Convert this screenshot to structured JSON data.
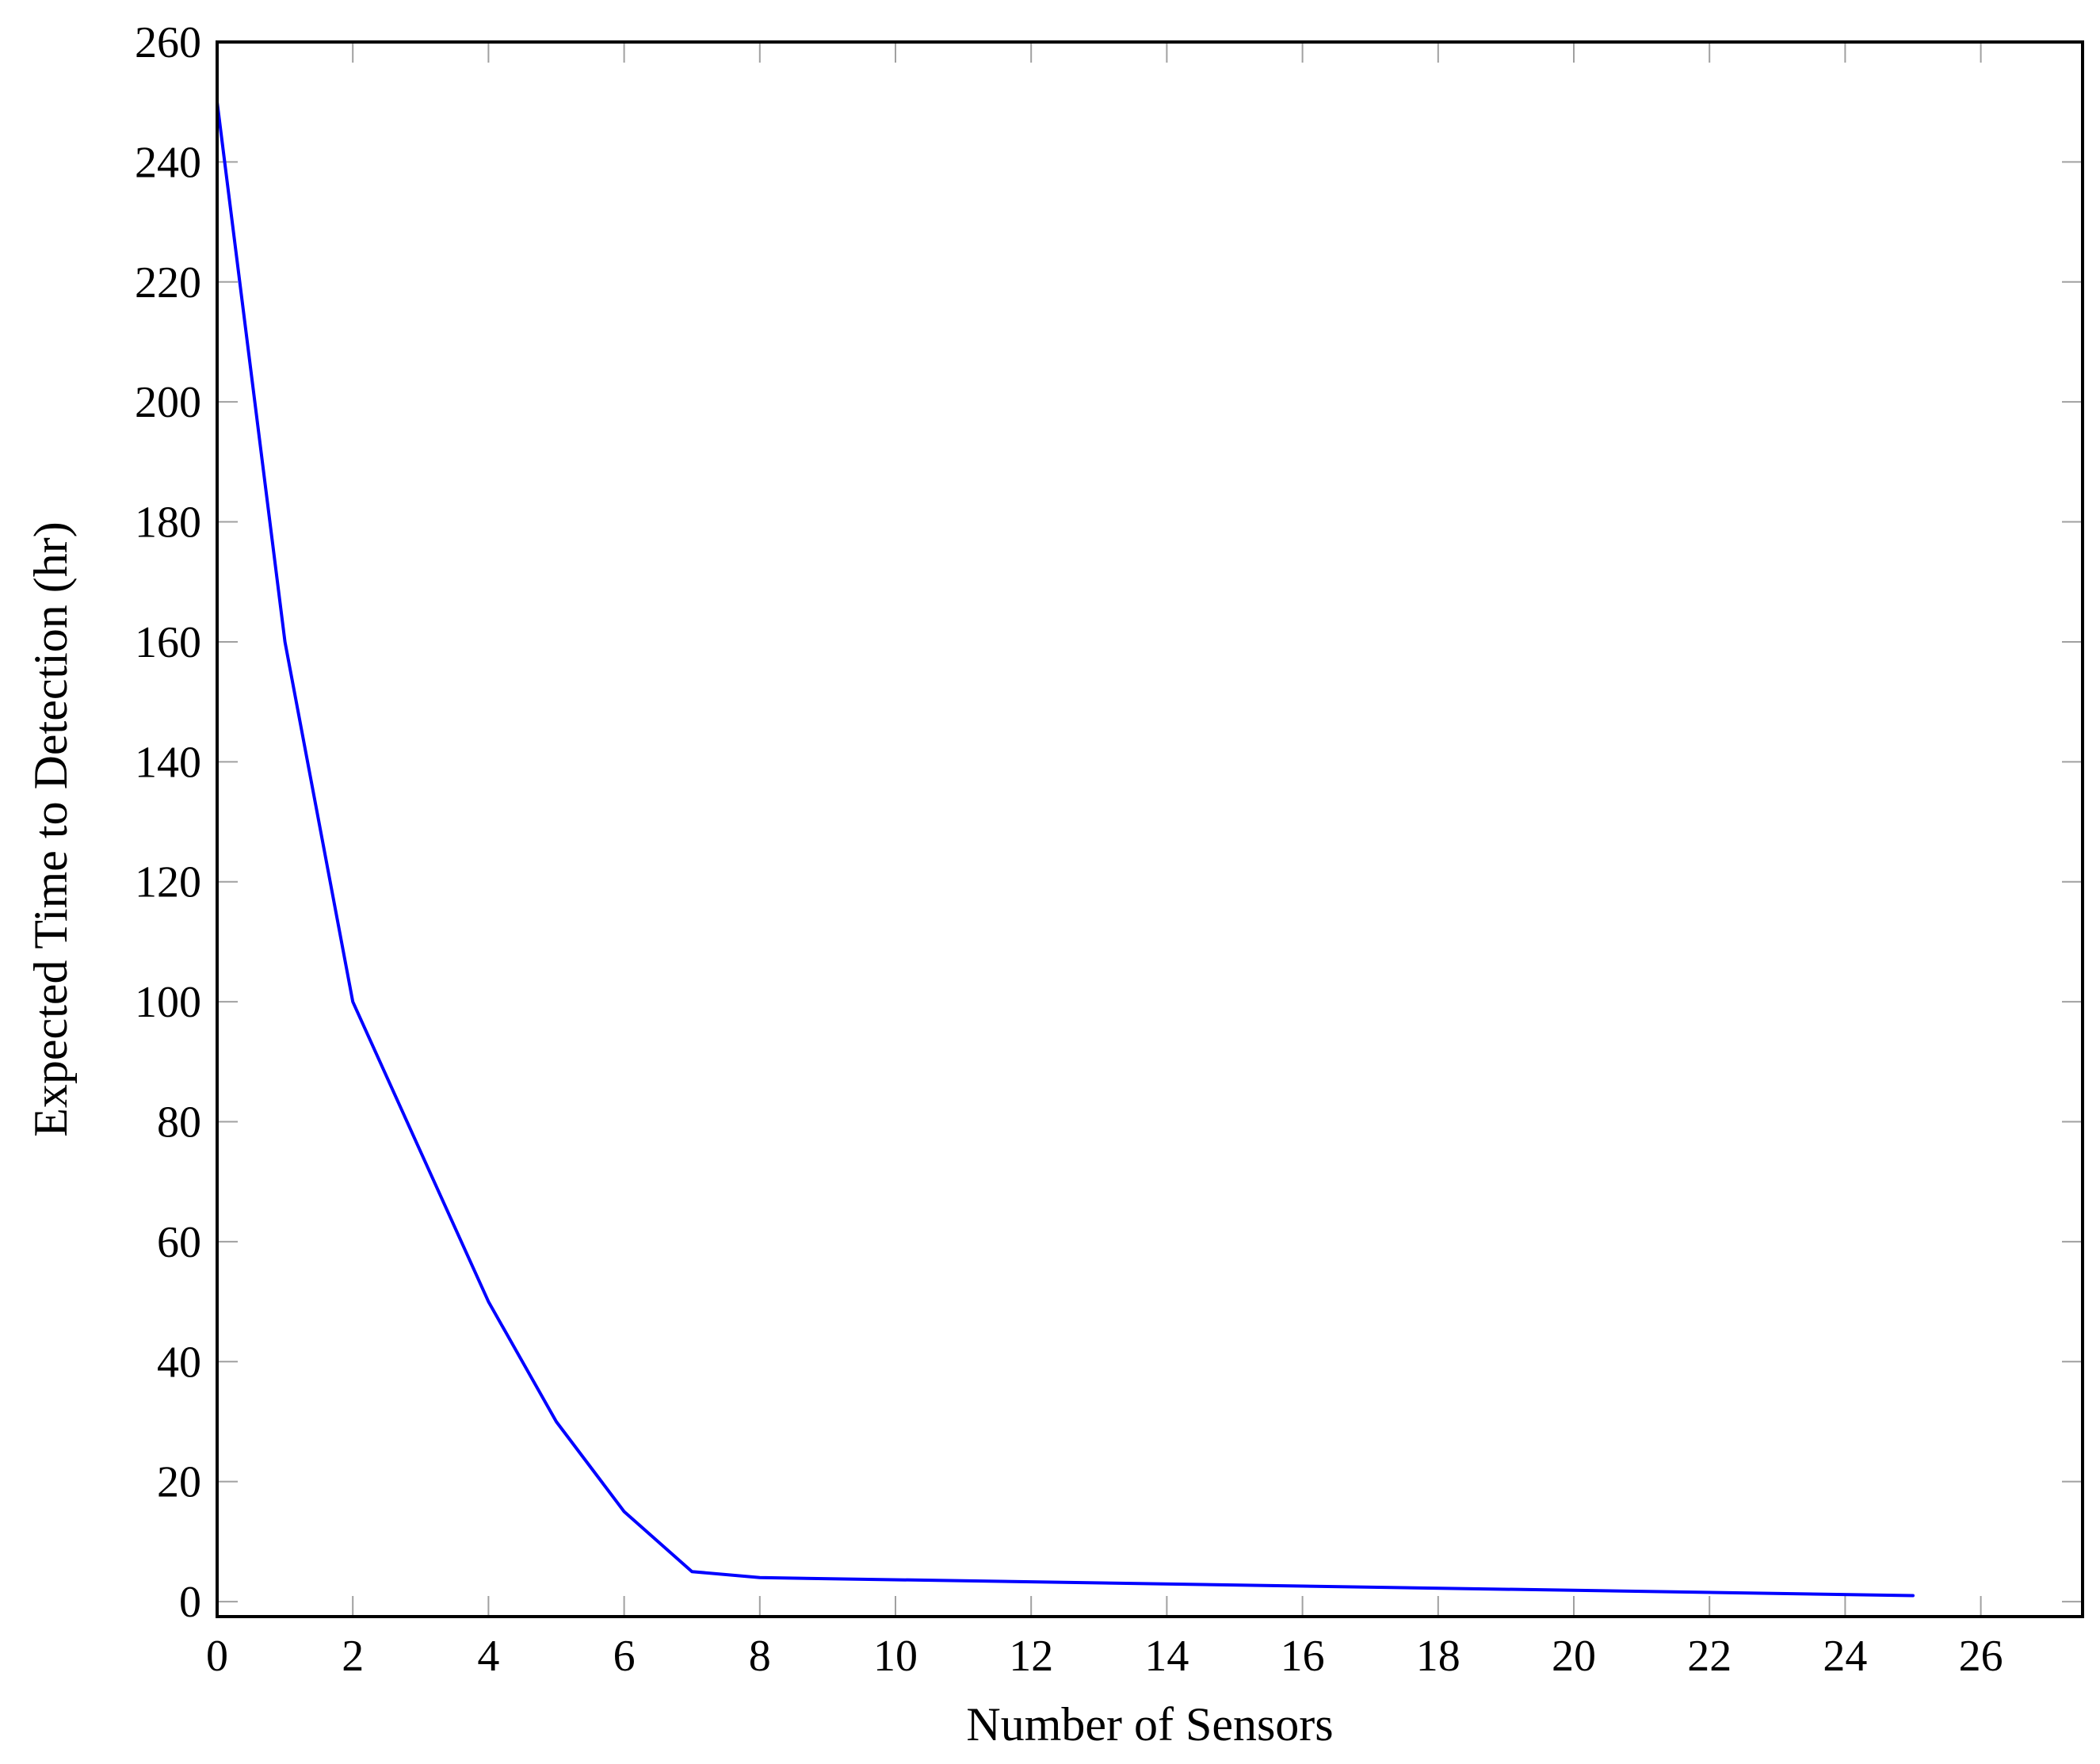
{
  "chart_data": {
    "type": "line",
    "title": "",
    "xlabel": "Number of Sensors",
    "ylabel": "Expected Time to Detection (hr)",
    "xlim": [
      0,
      27.5
    ],
    "ylim": [
      -2.5,
      260
    ],
    "xticks": [
      0,
      2,
      4,
      6,
      8,
      10,
      12,
      14,
      16,
      18,
      20,
      22,
      24,
      26
    ],
    "yticks": [
      0,
      20,
      40,
      60,
      80,
      100,
      120,
      140,
      160,
      180,
      200,
      220,
      240,
      260
    ],
    "grid": false,
    "legend": null,
    "series": [
      {
        "color": "#0000ff",
        "x": [
          0,
          1,
          2,
          3,
          4,
          5,
          6,
          7,
          8,
          25
        ],
        "y": [
          250,
          160,
          100,
          75,
          50,
          30,
          15,
          5,
          4,
          1
        ]
      }
    ]
  }
}
